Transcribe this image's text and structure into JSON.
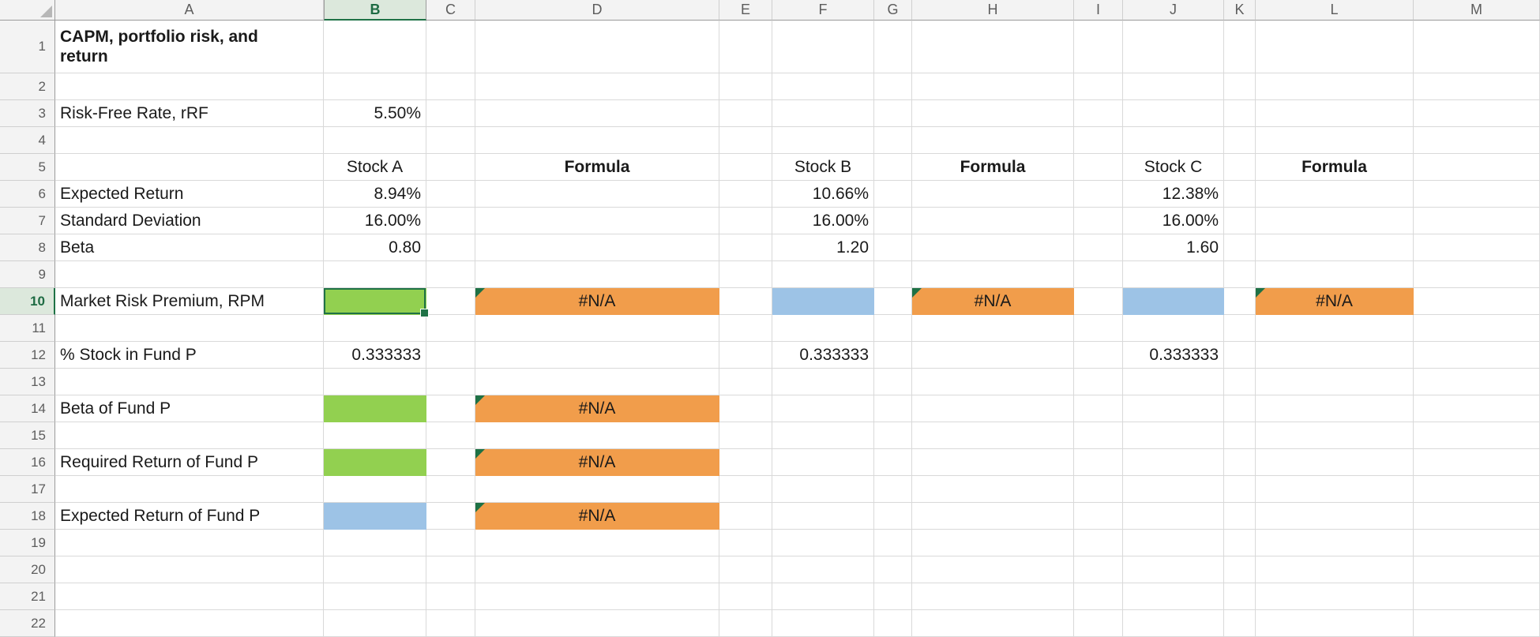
{
  "sheet": {
    "title": "CAPM, portfolio risk, and return worksheet"
  },
  "column_headers": [
    "A",
    "B",
    "C",
    "D",
    "E",
    "F",
    "G",
    "H",
    "I",
    "J",
    "K",
    "L",
    "M"
  ],
  "row_headers": [
    "1",
    "2",
    "3",
    "4",
    "5",
    "6",
    "7",
    "8",
    "9",
    "10",
    "11",
    "12",
    "13",
    "14",
    "15",
    "16",
    "17",
    "18",
    "19",
    "20",
    "21",
    "22"
  ],
  "selection": {
    "cell": "B10",
    "column": "B",
    "row": "10"
  },
  "colors": {
    "fill_green": "#92d050",
    "fill_blue": "#9dc3e6",
    "fill_orange": "#f19d4b",
    "selection_border": "#1f7246",
    "error_indicator": "#1e7145"
  },
  "cells": [
    {
      "ref": "A1",
      "text": "CAPM, portfolio risk, and return",
      "bold": true,
      "wrap": true
    },
    {
      "ref": "A3",
      "text": "Risk-Free Rate, rRF"
    },
    {
      "ref": "B3",
      "text": "5.50%",
      "align": "right"
    },
    {
      "ref": "B5",
      "text": "Stock A",
      "align": "center"
    },
    {
      "ref": "D5",
      "text": "Formula",
      "bold": true,
      "align": "center"
    },
    {
      "ref": "F5",
      "text": "Stock B",
      "align": "center"
    },
    {
      "ref": "H5",
      "text": "Formula",
      "bold": true,
      "align": "center"
    },
    {
      "ref": "J5",
      "text": "Stock C",
      "align": "center"
    },
    {
      "ref": "L5",
      "text": "Formula",
      "bold": true,
      "align": "center"
    },
    {
      "ref": "A6",
      "text": "Expected Return"
    },
    {
      "ref": "B6",
      "text": "8.94%",
      "align": "right"
    },
    {
      "ref": "F6",
      "text": "10.66%",
      "align": "right"
    },
    {
      "ref": "J6",
      "text": "12.38%",
      "align": "right"
    },
    {
      "ref": "A7",
      "text": "Standard Deviation"
    },
    {
      "ref": "B7",
      "text": "16.00%",
      "align": "right"
    },
    {
      "ref": "F7",
      "text": "16.00%",
      "align": "right"
    },
    {
      "ref": "J7",
      "text": "16.00%",
      "align": "right"
    },
    {
      "ref": "A8",
      "text": "Beta"
    },
    {
      "ref": "B8",
      "text": "0.80",
      "align": "right"
    },
    {
      "ref": "F8",
      "text": "1.20",
      "align": "right"
    },
    {
      "ref": "J8",
      "text": "1.60",
      "align": "right"
    },
    {
      "ref": "A10",
      "text": "Market Risk Premium, RPM"
    },
    {
      "ref": "B10",
      "fill": "green",
      "selected": true
    },
    {
      "ref": "D10",
      "text": "#N/A",
      "fill": "orange",
      "align": "center",
      "error_marker": true
    },
    {
      "ref": "F10",
      "fill": "blue"
    },
    {
      "ref": "H10",
      "text": "#N/A",
      "fill": "orange",
      "align": "center",
      "error_marker": true
    },
    {
      "ref": "J10",
      "fill": "blue"
    },
    {
      "ref": "L10",
      "text": "#N/A",
      "fill": "orange",
      "align": "center",
      "error_marker": true
    },
    {
      "ref": "A12",
      "text": "% Stock in Fund P"
    },
    {
      "ref": "B12",
      "text": "0.333333",
      "align": "right"
    },
    {
      "ref": "F12",
      "text": "0.333333",
      "align": "right"
    },
    {
      "ref": "J12",
      "text": "0.333333",
      "align": "right"
    },
    {
      "ref": "A14",
      "text": "Beta of Fund P"
    },
    {
      "ref": "B14",
      "fill": "green"
    },
    {
      "ref": "D14",
      "text": "#N/A",
      "fill": "orange",
      "align": "center",
      "error_marker": true
    },
    {
      "ref": "A16",
      "text": "Required Return of Fund P"
    },
    {
      "ref": "B16",
      "fill": "green"
    },
    {
      "ref": "D16",
      "text": "#N/A",
      "fill": "orange",
      "align": "center",
      "error_marker": true
    },
    {
      "ref": "A18",
      "text": "Expected Return of Fund P"
    },
    {
      "ref": "B18",
      "fill": "blue"
    },
    {
      "ref": "D18",
      "text": "#N/A",
      "fill": "orange",
      "align": "center",
      "error_marker": true
    }
  ]
}
